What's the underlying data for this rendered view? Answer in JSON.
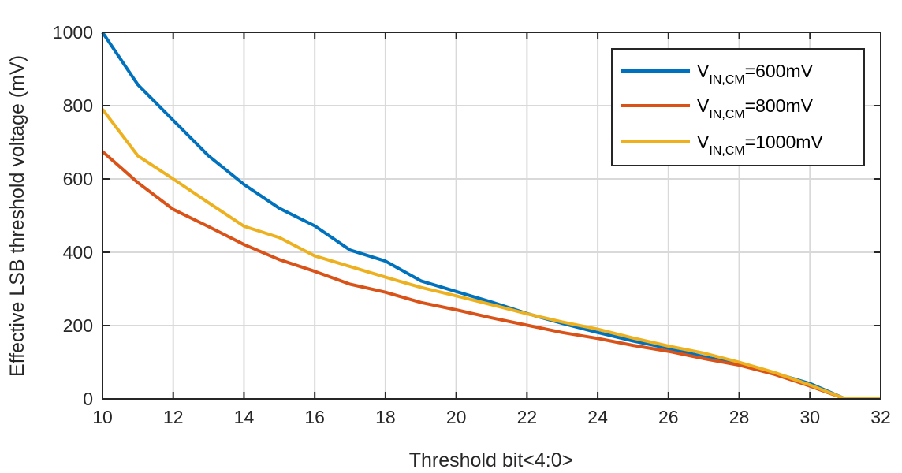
{
  "chart_data": {
    "type": "line",
    "xlabel": "Threshold bit<4:0>",
    "ylabel": "Effective LSB threshold voltage (mV)",
    "xlim": [
      10,
      32
    ],
    "ylim": [
      0,
      1000
    ],
    "xticks": [
      "10",
      "12",
      "14",
      "16",
      "18",
      "20",
      "22",
      "24",
      "26",
      "28",
      "30",
      "32"
    ],
    "yticks": [
      "0",
      "200",
      "400",
      "600",
      "800",
      "1000"
    ],
    "grid": true,
    "legend_position": "top-right",
    "x": [
      10,
      11,
      12,
      13,
      14,
      15,
      16,
      17,
      18,
      19,
      20,
      21,
      22,
      23,
      24,
      25,
      26,
      27,
      28,
      29,
      30,
      31,
      32
    ],
    "series": [
      {
        "legend_main": "V",
        "legend_sub": "IN,CM",
        "legend_value": "=600mV",
        "color": "#0072BD",
        "values": [
          1000,
          857,
          760,
          663,
          585,
          520,
          472,
          406,
          376,
          322,
          293,
          264,
          233,
          206,
          181,
          158,
          138,
          115,
          94,
          70,
          42,
          0,
          0
        ]
      },
      {
        "legend_main": "V",
        "legend_sub": "IN,CM",
        "legend_value": "=800mV",
        "color": "#D95319",
        "values": [
          675,
          590,
          517,
          470,
          421,
          380,
          348,
          313,
          291,
          263,
          243,
          221,
          201,
          181,
          165,
          146,
          130,
          110,
          92,
          67,
          35,
          0,
          0
        ]
      },
      {
        "legend_main": "V",
        "legend_sub": "IN,CM",
        "legend_value": "=1000mV",
        "color": "#EDB120",
        "values": [
          790,
          663,
          600,
          535,
          471,
          440,
          390,
          361,
          332,
          304,
          281,
          257,
          232,
          210,
          190,
          166,
          144,
          125,
          100,
          72,
          38,
          0,
          0
        ]
      }
    ]
  }
}
